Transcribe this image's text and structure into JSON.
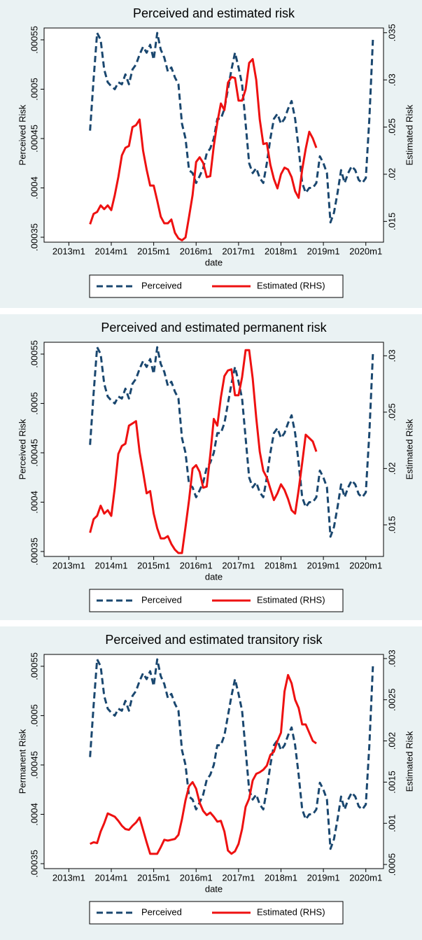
{
  "chart_data": [
    {
      "type": "line",
      "title": "Perceived and estimated risk",
      "xlabel": "date",
      "ylabel": "Perceived Risk",
      "y2label": "Estimated Risk",
      "x": [
        "2013m7",
        "2013m8",
        "2013m9",
        "2013m10",
        "2013m11",
        "2013m12",
        "2014m1",
        "2014m2",
        "2014m3",
        "2014m4",
        "2014m5",
        "2014m6",
        "2014m7",
        "2014m8",
        "2014m9",
        "2014m10",
        "2014m11",
        "2014m12",
        "2015m1",
        "2015m2",
        "2015m3",
        "2015m4",
        "2015m5",
        "2015m6",
        "2015m7",
        "2015m8",
        "2015m9",
        "2015m10",
        "2015m11",
        "2015m12",
        "2016m1",
        "2016m2",
        "2016m3",
        "2016m4",
        "2016m5",
        "2016m6",
        "2016m7",
        "2016m8",
        "2016m9",
        "2016m10",
        "2016m11",
        "2016m12",
        "2017m1",
        "2017m2",
        "2017m3",
        "2017m4",
        "2017m5",
        "2017m6",
        "2017m7",
        "2017m8",
        "2017m9",
        "2017m10",
        "2017m11",
        "2017m12",
        "2018m1",
        "2018m2",
        "2018m3",
        "2018m4",
        "2018m5",
        "2018m6",
        "2018m7",
        "2018m8",
        "2018m9",
        "2018m10",
        "2018m11",
        "2018m12",
        "2019m1",
        "2019m2",
        "2019m3",
        "2019m4",
        "2019m5",
        "2019m6",
        "2019m7",
        "2019m8",
        "2019m9",
        "2019m10",
        "2019m11",
        "2019m12",
        "2020m1",
        "2020m2",
        "2020m3"
      ],
      "xlim": [
        "2012m6",
        "2020m6"
      ],
      "xticks": [
        "2013m1",
        "2014m1",
        "2015m1",
        "2016m1",
        "2017m1",
        "2018m1",
        "2019m1",
        "2020m1"
      ],
      "ylim": [
        0.000345,
        0.000562
      ],
      "yticks": [
        {
          "value": 0.00035,
          "label": ".00035"
        },
        {
          "value": 0.0004,
          "label": ".0004"
        },
        {
          "value": 0.00045,
          "label": ".00045"
        },
        {
          "value": 0.0005,
          "label": ".0005"
        },
        {
          "value": 0.00055,
          "label": ".00055"
        }
      ],
      "y2lim": [
        0.0128,
        0.0355
      ],
      "y2ticks": [
        {
          "value": 0.015,
          "label": ".015"
        },
        {
          "value": 0.02,
          "label": ".02"
        },
        {
          "value": 0.025,
          "label": ".025"
        },
        {
          "value": 0.03,
          "label": ".03"
        },
        {
          "value": 0.035,
          "label": ".035"
        }
      ],
      "series": [
        {
          "name": "Perceived",
          "color": "#1a476f",
          "dashed": true,
          "values": [
            0.000458,
            0.00051,
            0.000557,
            0.00055,
            0.00052,
            0.000507,
            0.000503,
            0.0005,
            0.000507,
            0.000505,
            0.000515,
            0.000505,
            0.00052,
            0.000525,
            0.000535,
            0.000543,
            0.000537,
            0.000545,
            0.00053,
            0.000557,
            0.00054,
            0.000532,
            0.000518,
            0.000522,
            0.000512,
            0.000505,
            0.000465,
            0.00045,
            0.000418,
            0.000415,
            0.000405,
            0.000412,
            0.00042,
            0.000435,
            0.00044,
            0.00045,
            0.00047,
            0.00047,
            0.00048,
            0.0005,
            0.00052,
            0.000537,
            0.000522,
            0.000505,
            0.000465,
            0.000425,
            0.000415,
            0.00042,
            0.00041,
            0.000405,
            0.000425,
            0.00045,
            0.00047,
            0.000475,
            0.000465,
            0.00047,
            0.00048,
            0.000488,
            0.00047,
            0.00044,
            0.000405,
            0.000395,
            0.0004,
            0.0004,
            0.000405,
            0.000432,
            0.000425,
            0.000415,
            0.000365,
            0.000375,
            0.000395,
            0.000418,
            0.000405,
            0.000415,
            0.000422,
            0.000418,
            0.000408,
            0.000405,
            0.00041,
            0.00047,
            0.00055
          ]
        },
        {
          "name": "Estimated (RHS)",
          "color": "#ee1111",
          "axis": "y2",
          "values": [
            0.0147,
            0.0158,
            0.016,
            0.0167,
            0.0163,
            0.0167,
            0.0162,
            0.0178,
            0.0197,
            0.022,
            0.0228,
            0.023,
            0.025,
            0.0252,
            0.0258,
            0.0225,
            0.0205,
            0.0188,
            0.0188,
            0.0172,
            0.0155,
            0.0148,
            0.0148,
            0.0152,
            0.0138,
            0.0132,
            0.013,
            0.0133,
            0.0155,
            0.0178,
            0.0213,
            0.0218,
            0.0212,
            0.0197,
            0.0198,
            0.023,
            0.0255,
            0.0275,
            0.0268,
            0.0297,
            0.0303,
            0.0302,
            0.0278,
            0.0278,
            0.029,
            0.0318,
            0.0322,
            0.03,
            0.0258,
            0.0232,
            0.0233,
            0.021,
            0.0195,
            0.0185,
            0.02,
            0.0207,
            0.0205,
            0.0197,
            0.0182,
            0.0175,
            0.0205,
            0.0227,
            0.0245,
            0.0238,
            0.0228,
            null,
            null,
            null,
            null,
            null,
            null,
            null,
            null,
            null,
            null,
            null,
            null,
            null,
            null,
            null,
            null
          ]
        }
      ]
    },
    {
      "type": "line",
      "title": "Perceived and estimated permanent risk",
      "xlabel": "date",
      "ylabel": "Perceived Risk",
      "y2label": "Estimated Risk",
      "x": [
        "2013m7",
        "2013m8",
        "2013m9",
        "2013m10",
        "2013m11",
        "2013m12",
        "2014m1",
        "2014m2",
        "2014m3",
        "2014m4",
        "2014m5",
        "2014m6",
        "2014m7",
        "2014m8",
        "2014m9",
        "2014m10",
        "2014m11",
        "2014m12",
        "2015m1",
        "2015m2",
        "2015m3",
        "2015m4",
        "2015m5",
        "2015m6",
        "2015m7",
        "2015m8",
        "2015m9",
        "2015m10",
        "2015m11",
        "2015m12",
        "2016m1",
        "2016m2",
        "2016m3",
        "2016m4",
        "2016m5",
        "2016m6",
        "2016m7",
        "2016m8",
        "2016m9",
        "2016m10",
        "2016m11",
        "2016m12",
        "2017m1",
        "2017m2",
        "2017m3",
        "2017m4",
        "2017m5",
        "2017m6",
        "2017m7",
        "2017m8",
        "2017m9",
        "2017m10",
        "2017m11",
        "2017m12",
        "2018m1",
        "2018m2",
        "2018m3",
        "2018m4",
        "2018m5",
        "2018m6",
        "2018m7",
        "2018m8",
        "2018m9",
        "2018m10",
        "2018m11",
        "2018m12",
        "2019m1",
        "2019m2",
        "2019m3",
        "2019m4",
        "2019m5",
        "2019m6",
        "2019m7",
        "2019m8",
        "2019m9",
        "2019m10",
        "2019m11",
        "2019m12",
        "2020m1",
        "2020m2",
        "2020m3"
      ],
      "xlim": [
        "2012m6",
        "2020m6"
      ],
      "xticks": [
        "2013m1",
        "2014m1",
        "2015m1",
        "2016m1",
        "2017m1",
        "2018m1",
        "2019m1",
        "2020m1"
      ],
      "ylim": [
        0.000345,
        0.000562
      ],
      "yticks": [
        {
          "value": 0.00035,
          "label": ".00035"
        },
        {
          "value": 0.0004,
          "label": ".0004"
        },
        {
          "value": 0.00045,
          "label": ".00045"
        },
        {
          "value": 0.0005,
          "label": ".0005"
        },
        {
          "value": 0.00055,
          "label": ".00055"
        }
      ],
      "y2lim": [
        0.0122,
        0.0312
      ],
      "y2ticks": [
        {
          "value": 0.015,
          "label": ".015"
        },
        {
          "value": 0.02,
          "label": ".02"
        },
        {
          "value": 0.025,
          "label": ".025"
        },
        {
          "value": 0.03,
          "label": ".03"
        }
      ],
      "series": [
        {
          "name": "Perceived",
          "color": "#1a476f",
          "dashed": true,
          "values": [
            0.000458,
            0.00051,
            0.000557,
            0.00055,
            0.00052,
            0.000507,
            0.000503,
            0.0005,
            0.000507,
            0.000505,
            0.000515,
            0.000505,
            0.00052,
            0.000525,
            0.000535,
            0.000543,
            0.000537,
            0.000545,
            0.00053,
            0.000557,
            0.00054,
            0.000532,
            0.000518,
            0.000522,
            0.000512,
            0.000505,
            0.000465,
            0.00045,
            0.000418,
            0.000415,
            0.000405,
            0.000412,
            0.00042,
            0.000435,
            0.00044,
            0.00045,
            0.00047,
            0.00047,
            0.00048,
            0.0005,
            0.00052,
            0.000537,
            0.000522,
            0.000505,
            0.000465,
            0.000425,
            0.000415,
            0.00042,
            0.00041,
            0.000405,
            0.000425,
            0.00045,
            0.00047,
            0.000475,
            0.000465,
            0.00047,
            0.00048,
            0.000488,
            0.00047,
            0.00044,
            0.000405,
            0.000395,
            0.0004,
            0.0004,
            0.000405,
            0.000432,
            0.000425,
            0.000415,
            0.000365,
            0.000375,
            0.000395,
            0.000418,
            0.000405,
            0.000415,
            0.000422,
            0.000418,
            0.000408,
            0.000405,
            0.00041,
            0.00047,
            0.00055
          ]
        },
        {
          "name": "Estimated (RHS)",
          "color": "#ee1111",
          "axis": "y2",
          "values": [
            0.0143,
            0.0155,
            0.0158,
            0.0167,
            0.016,
            0.0163,
            0.0158,
            0.0183,
            0.0213,
            0.022,
            0.0222,
            0.0238,
            0.024,
            0.0242,
            0.0215,
            0.0197,
            0.0178,
            0.018,
            0.016,
            0.0147,
            0.0138,
            0.0138,
            0.014,
            0.0133,
            0.0128,
            0.0125,
            0.0125,
            0.0148,
            0.0172,
            0.02,
            0.0203,
            0.0197,
            0.0183,
            0.0184,
            0.0212,
            0.0244,
            0.0238,
            0.0263,
            0.0282,
            0.0287,
            0.0288,
            0.0265,
            0.0265,
            0.0281,
            0.0305,
            0.0305,
            0.028,
            0.0245,
            0.0215,
            0.0198,
            0.0192,
            0.0182,
            0.0172,
            0.0178,
            0.0186,
            0.0181,
            0.0173,
            0.0163,
            0.016,
            0.0181,
            0.0205,
            0.023,
            0.0227,
            0.0224,
            0.0215,
            null,
            null,
            null,
            null,
            null,
            null,
            null,
            null,
            null,
            null,
            null,
            null,
            null,
            null,
            null,
            null
          ]
        }
      ]
    },
    {
      "type": "line",
      "title": "Perceived and estimated transitory risk",
      "xlabel": "date",
      "ylabel": "Permanent Risk",
      "y2label": "Estimated Risk",
      "x": [
        "2013m7",
        "2013m8",
        "2013m9",
        "2013m10",
        "2013m11",
        "2013m12",
        "2014m1",
        "2014m2",
        "2014m3",
        "2014m4",
        "2014m5",
        "2014m6",
        "2014m7",
        "2014m8",
        "2014m9",
        "2014m10",
        "2014m11",
        "2014m12",
        "2015m1",
        "2015m2",
        "2015m3",
        "2015m4",
        "2015m5",
        "2015m6",
        "2015m7",
        "2015m8",
        "2015m9",
        "2015m10",
        "2015m11",
        "2015m12",
        "2016m1",
        "2016m2",
        "2016m3",
        "2016m4",
        "2016m5",
        "2016m6",
        "2016m7",
        "2016m8",
        "2016m9",
        "2016m10",
        "2016m11",
        "2016m12",
        "2017m1",
        "2017m2",
        "2017m3",
        "2017m4",
        "2017m5",
        "2017m6",
        "2017m7",
        "2017m8",
        "2017m9",
        "2017m10",
        "2017m11",
        "2017m12",
        "2018m1",
        "2018m2",
        "2018m3",
        "2018m4",
        "2018m5",
        "2018m6",
        "2018m7",
        "2018m8",
        "2018m9",
        "2018m10",
        "2018m11",
        "2018m12",
        "2019m1",
        "2019m2",
        "2019m3",
        "2019m4",
        "2019m5",
        "2019m6",
        "2019m7",
        "2019m8",
        "2019m9",
        "2019m10",
        "2019m11",
        "2019m12",
        "2020m1",
        "2020m2",
        "2020m3"
      ],
      "xlim": [
        "2012m6",
        "2020m6"
      ],
      "xticks": [
        "2013m1",
        "2014m1",
        "2015m1",
        "2016m1",
        "2017m1",
        "2018m1",
        "2019m1",
        "2020m1"
      ],
      "ylim": [
        0.000345,
        0.000562
      ],
      "yticks": [
        {
          "value": 0.00035,
          "label": ".00035"
        },
        {
          "value": 0.0004,
          "label": ".0004"
        },
        {
          "value": 0.00045,
          "label": ".00045"
        },
        {
          "value": 0.0005,
          "label": ".0005"
        },
        {
          "value": 0.00055,
          "label": ".00055"
        }
      ],
      "y2lim": [
        0.00045,
        0.00305
      ],
      "y2ticks": [
        {
          "value": 0.0005,
          "label": ".0005"
        },
        {
          "value": 0.001,
          "label": ".001"
        },
        {
          "value": 0.0015,
          "label": ".0015"
        },
        {
          "value": 0.002,
          "label": ".002"
        },
        {
          "value": 0.0025,
          "label": ".0025"
        },
        {
          "value": 0.003,
          "label": ".003"
        }
      ],
      "series": [
        {
          "name": "Perceived",
          "color": "#1a476f",
          "dashed": true,
          "values": [
            0.000458,
            0.00051,
            0.000557,
            0.00055,
            0.00052,
            0.000507,
            0.000503,
            0.0005,
            0.000507,
            0.000505,
            0.000515,
            0.000505,
            0.00052,
            0.000525,
            0.000535,
            0.000543,
            0.000537,
            0.000545,
            0.00053,
            0.000557,
            0.00054,
            0.000532,
            0.000518,
            0.000522,
            0.000512,
            0.000505,
            0.000465,
            0.00045,
            0.000418,
            0.000415,
            0.000405,
            0.000412,
            0.00042,
            0.000435,
            0.00044,
            0.00045,
            0.00047,
            0.00047,
            0.00048,
            0.0005,
            0.00052,
            0.000537,
            0.000522,
            0.000505,
            0.000465,
            0.000425,
            0.000415,
            0.00042,
            0.00041,
            0.000405,
            0.000425,
            0.00045,
            0.00047,
            0.000475,
            0.000465,
            0.00047,
            0.00048,
            0.000488,
            0.00047,
            0.00044,
            0.000405,
            0.000395,
            0.0004,
            0.0004,
            0.000405,
            0.000432,
            0.000425,
            0.000415,
            0.000365,
            0.000375,
            0.000395,
            0.000418,
            0.000405,
            0.000415,
            0.000422,
            0.000418,
            0.000408,
            0.000405,
            0.00041,
            0.00047,
            0.00055
          ]
        },
        {
          "name": "Estimated (RHS)",
          "color": "#ee1111",
          "axis": "y2",
          "values": [
            0.00075,
            0.00077,
            0.00076,
            0.0009,
            0.001,
            0.00112,
            0.0011,
            0.00108,
            0.00103,
            0.00097,
            0.00093,
            0.00092,
            0.00097,
            0.00101,
            0.00107,
            0.00092,
            0.00077,
            0.00063,
            0.00063,
            0.00063,
            0.00071,
            0.0008,
            0.00079,
            0.0008,
            0.00081,
            0.00086,
            0.00105,
            0.00128,
            0.00145,
            0.0015,
            0.00142,
            0.00125,
            0.00115,
            0.0011,
            0.00113,
            0.00108,
            0.00102,
            0.00103,
            0.0009,
            0.00067,
            0.00063,
            0.00066,
            0.00075,
            0.00093,
            0.0012,
            0.0013,
            0.00152,
            0.0016,
            0.00162,
            0.00165,
            0.0017,
            0.00183,
            0.00187,
            0.002,
            0.0021,
            0.0026,
            0.0028,
            0.0027,
            0.0025,
            0.0024,
            0.0022,
            0.0022,
            0.0021,
            0.002,
            0.00197,
            null,
            null,
            null,
            null,
            null,
            null,
            null,
            null,
            null,
            null,
            null,
            null,
            null,
            null,
            null,
            null
          ]
        }
      ]
    }
  ]
}
